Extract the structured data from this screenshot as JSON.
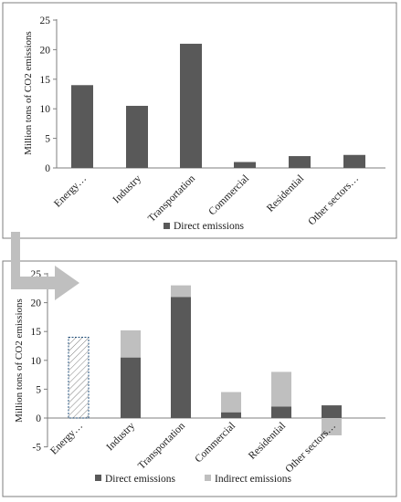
{
  "colors": {
    "direct": "#595959",
    "indirect": "#bfbfbf",
    "axis": "#7f7f7f",
    "frame": "#7f7f7f",
    "arrow": "#bfbfbf",
    "hatch": "#7f7f7f",
    "hatch_border": "#1f4e79"
  },
  "chart_data": [
    {
      "type": "bar",
      "ylabel": "Million tons of CO2 emissions",
      "ylim": [
        0,
        25
      ],
      "yticks": [
        0,
        5,
        10,
        15,
        20,
        25
      ],
      "categories": [
        "Energy…",
        "Industry",
        "Transportation",
        "Commercial",
        "Residential",
        "Other sectors…"
      ],
      "series": [
        {
          "name": "Direct emissions",
          "values": [
            14,
            10.5,
            21,
            1,
            2,
            2.2
          ]
        }
      ],
      "legend": "bottom",
      "grid": false
    },
    {
      "type": "bar",
      "stacked": true,
      "ylabel": "Million tons of CO2 emissions",
      "ylim": [
        -5,
        25
      ],
      "yticks": [
        -5,
        0,
        5,
        10,
        15,
        20,
        25
      ],
      "categories": [
        "Energy…",
        "Industry",
        "Transportation",
        "Commercial",
        "Residential",
        "Other sectors…"
      ],
      "series": [
        {
          "name": "Direct emissions",
          "values": [
            14,
            10.5,
            21,
            1,
            2,
            2.2
          ]
        },
        {
          "name": "Indirect emissions",
          "values": [
            0,
            4.7,
            2,
            3.5,
            6,
            -3
          ]
        }
      ],
      "legend": "bottom",
      "grid": false
    }
  ]
}
